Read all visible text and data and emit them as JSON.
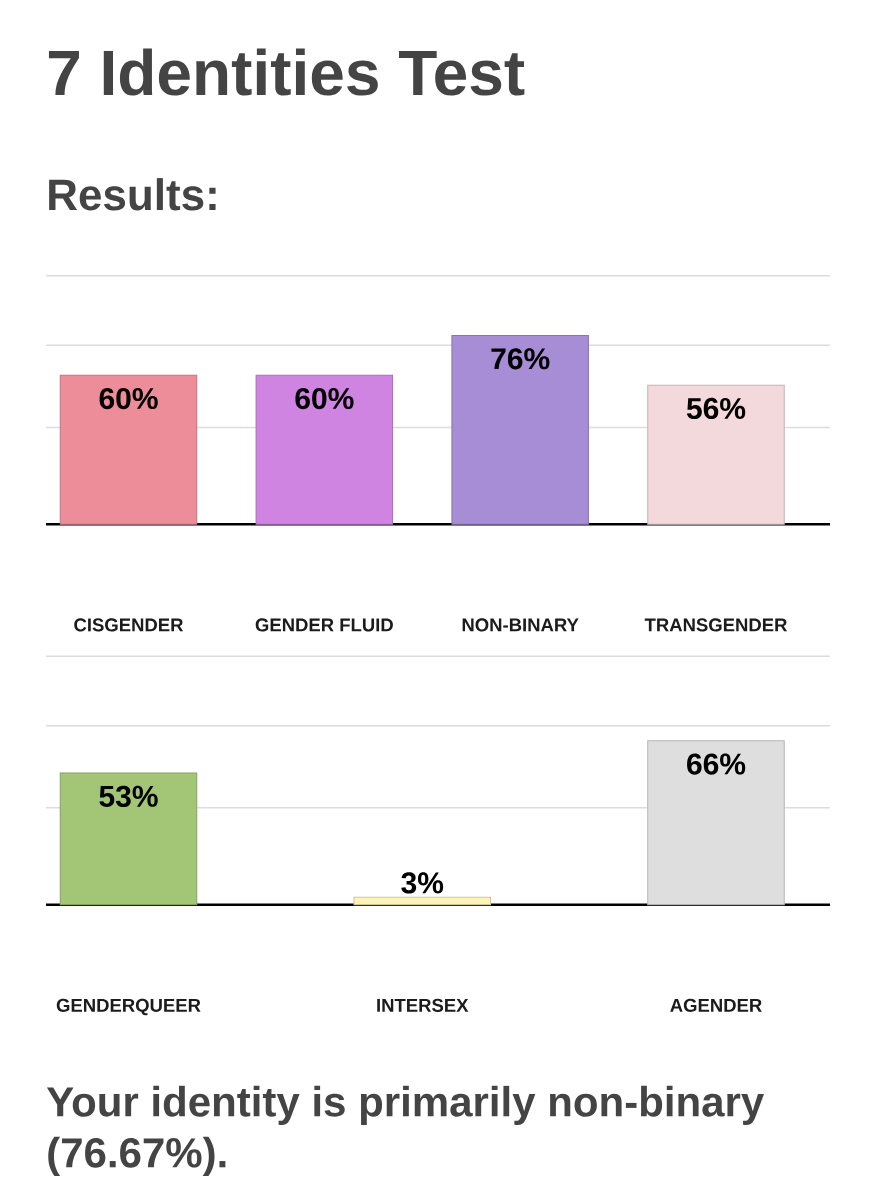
{
  "chart_data": [
    {
      "type": "bar",
      "title": "7 Identities Test",
      "subtitle": "Results:",
      "categories": [
        "CISGENDER",
        "GENDER FLUID",
        "NON-BINARY",
        "TRANSGENDER"
      ],
      "values": [
        60,
        60,
        76,
        56
      ],
      "colors": [
        "#ee8d9a",
        "#cf84e2",
        "#a78cd6",
        "#f3d8dc"
      ],
      "value_labels": [
        "60%",
        "60%",
        "76%",
        "56%"
      ],
      "ylim": [
        0,
        100
      ],
      "yticks": [
        {
          "value": 39,
          "label": null
        },
        {
          "value": 72,
          "label": null
        },
        {
          "value": 100,
          "label": null
        }
      ],
      "grid": "y",
      "tick_labels": "x"
    },
    {
      "type": "bar",
      "categories": [
        "GENDERQUEER",
        "INTERSEX",
        "AGENDER"
      ],
      "values": [
        53,
        3,
        66
      ],
      "colors": [
        "#a2c676",
        "#fcf3b8",
        "#dedede"
      ],
      "value_labels": [
        "53%",
        "3%",
        "66%"
      ],
      "ylim": [
        0,
        100
      ],
      "yticks": [
        {
          "value": 39,
          "label": null
        },
        {
          "value": 72,
          "label": null
        },
        {
          "value": 100,
          "label": null
        }
      ],
      "grid": "y",
      "tick_labels": "x",
      "annotations": [
        "Your identity is primarily non-binary (76.67%)."
      ]
    }
  ]
}
